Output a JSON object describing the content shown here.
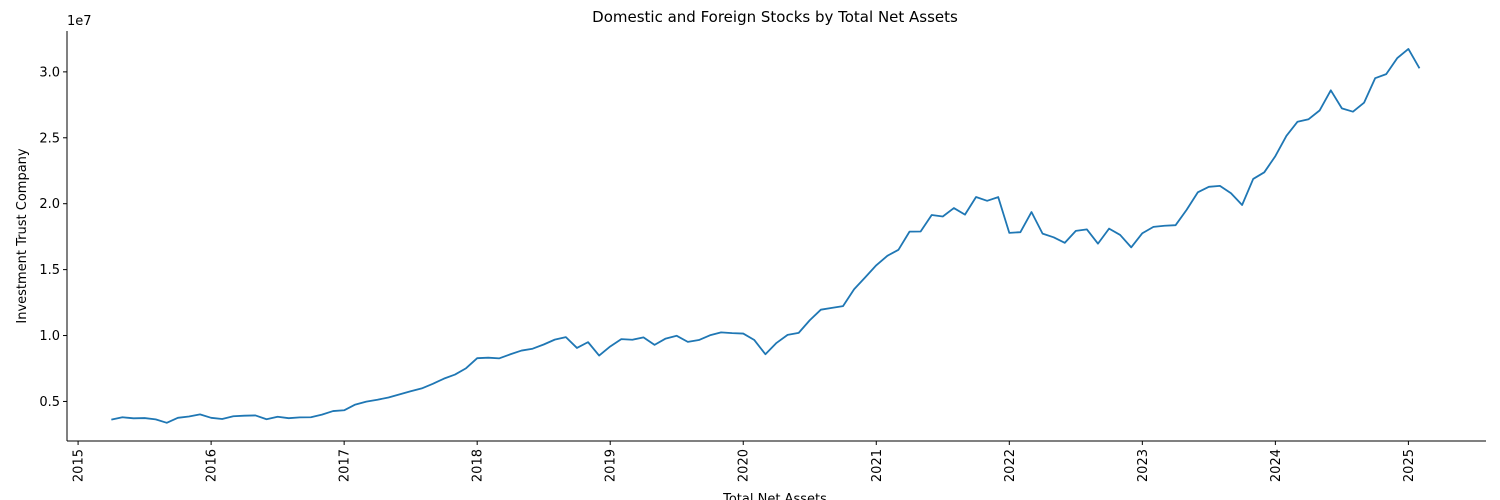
{
  "chart_data": {
    "type": "line",
    "title": "Domestic and Foreign Stocks by Total Net Assets",
    "xlabel": "Total Net Assets",
    "ylabel": "Investment Trust Company",
    "y_offset_label": "1e7",
    "x_ticks": [
      "2015",
      "2016",
      "2017",
      "2018",
      "2019",
      "2020",
      "2021",
      "2022",
      "2023",
      "2024",
      "2025"
    ],
    "y_ticks": [
      0.5,
      1.0,
      1.5,
      2.0,
      2.5,
      3.0
    ],
    "y_tick_labels": [
      "0.5",
      "1.0",
      "1.5",
      "2.0",
      "2.5",
      "3.0"
    ],
    "y_tick_scale": 10000000,
    "xlim": [
      "2014-12-01",
      "2025-08-01"
    ],
    "ylim": [
      2000000,
      33100000
    ],
    "grid": false,
    "line_color": "#1f77b4",
    "series": [
      {
        "x": [
          "2015-04-01",
          "2015-05-01",
          "2015-06-01",
          "2015-07-01",
          "2015-08-01",
          "2015-09-01",
          "2015-10-01",
          "2015-11-01",
          "2015-12-01",
          "2016-01-01",
          "2016-02-01",
          "2016-03-01",
          "2016-04-01",
          "2016-05-01",
          "2016-06-01",
          "2016-07-01",
          "2016-08-01",
          "2016-09-01",
          "2016-10-01",
          "2016-11-01",
          "2016-12-01",
          "2017-01-01",
          "2017-02-01",
          "2017-03-01",
          "2017-04-01",
          "2017-05-01",
          "2017-06-01",
          "2017-07-01",
          "2017-08-01",
          "2017-09-01",
          "2017-10-01",
          "2017-11-01",
          "2017-12-01",
          "2018-01-01",
          "2018-02-01",
          "2018-03-01",
          "2018-04-01",
          "2018-05-01",
          "2018-06-01",
          "2018-07-01",
          "2018-08-01",
          "2018-09-01",
          "2018-10-01",
          "2018-11-01",
          "2018-12-01",
          "2019-01-01",
          "2019-02-01",
          "2019-03-01",
          "2019-04-01",
          "2019-05-01",
          "2019-06-01",
          "2019-07-01",
          "2019-08-01",
          "2019-09-01",
          "2019-10-01",
          "2019-11-01",
          "2019-12-01",
          "2020-01-01",
          "2020-02-01",
          "2020-03-01",
          "2020-04-01",
          "2020-05-01",
          "2020-06-01",
          "2020-07-01",
          "2020-08-01",
          "2020-09-01",
          "2020-10-01",
          "2020-11-01",
          "2020-12-01",
          "2021-01-01",
          "2021-02-01",
          "2021-03-01",
          "2021-04-01",
          "2021-05-01",
          "2021-06-01",
          "2021-07-01",
          "2021-08-01",
          "2021-09-01",
          "2021-10-01",
          "2021-11-01",
          "2021-12-01",
          "2022-01-01",
          "2022-02-01",
          "2022-03-01",
          "2022-04-01",
          "2022-05-01",
          "2022-06-01",
          "2022-07-01",
          "2022-08-01",
          "2022-09-01",
          "2022-10-01",
          "2022-11-01",
          "2022-12-01",
          "2023-01-01",
          "2023-02-01",
          "2023-03-01",
          "2023-04-01",
          "2023-05-01",
          "2023-06-01",
          "2023-07-01",
          "2023-08-01",
          "2023-09-01",
          "2023-10-01",
          "2023-11-01",
          "2023-12-01",
          "2024-01-01",
          "2024-02-01",
          "2024-03-01",
          "2024-04-01",
          "2024-05-01",
          "2024-06-01",
          "2024-07-01",
          "2024-08-01",
          "2024-09-01",
          "2024-10-01",
          "2024-11-01",
          "2024-12-01",
          "2025-01-01",
          "2025-02-01"
        ],
        "values": [
          3620000,
          3800000,
          3720000,
          3740000,
          3640000,
          3380000,
          3760000,
          3860000,
          4020000,
          3760000,
          3670000,
          3880000,
          3920000,
          3940000,
          3650000,
          3840000,
          3730000,
          3790000,
          3800000,
          4000000,
          4270000,
          4330000,
          4760000,
          4990000,
          5130000,
          5300000,
          5540000,
          5770000,
          5990000,
          6340000,
          6730000,
          7040000,
          7520000,
          8280000,
          8320000,
          8270000,
          8580000,
          8860000,
          9000000,
          9320000,
          9690000,
          9880000,
          9060000,
          9500000,
          8480000,
          9170000,
          9730000,
          9680000,
          9860000,
          9290000,
          9770000,
          9980000,
          9520000,
          9660000,
          10020000,
          10240000,
          10180000,
          10150000,
          9660000,
          8580000,
          9440000,
          10050000,
          10200000,
          11160000,
          11960000,
          12100000,
          12230000,
          13510000,
          14410000,
          15330000,
          16050000,
          16500000,
          17880000,
          17890000,
          19140000,
          19030000,
          19670000,
          19170000,
          20510000,
          20220000,
          20500000,
          17790000,
          17840000,
          19370000,
          17730000,
          17450000,
          17030000,
          17940000,
          18050000,
          16970000,
          18110000,
          17630000,
          16690000,
          17760000,
          18240000,
          18330000,
          18370000,
          19540000,
          20860000,
          21280000,
          21350000,
          20790000,
          19900000,
          21880000,
          22380000,
          23610000,
          25150000,
          26220000,
          26410000,
          27080000,
          28600000,
          27230000,
          26980000,
          27660000,
          29520000,
          29830000,
          31050000,
          31740000,
          30270000
        ]
      }
    ]
  }
}
